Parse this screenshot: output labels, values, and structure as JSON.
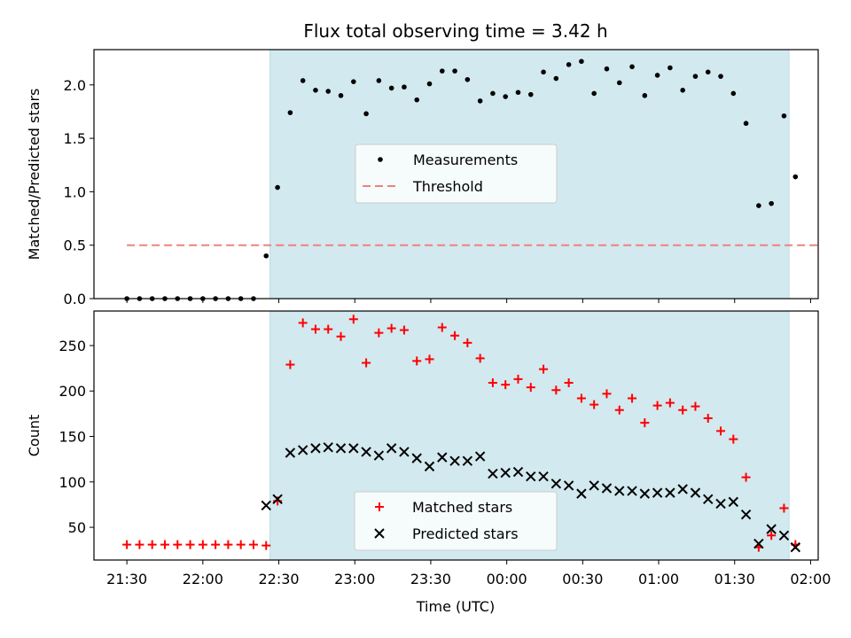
{
  "chart_data": {
    "title": "Flux total observing time = 3.42 h",
    "xlabel": "Time (UTC)",
    "x_ticks": [
      "21:30",
      "22:00",
      "22:30",
      "23:00",
      "23:30",
      "00:00",
      "00:30",
      "01:00",
      "01:30",
      "02:00"
    ],
    "x_tick_minutes": [
      0,
      30,
      60,
      90,
      120,
      150,
      180,
      210,
      240,
      270
    ],
    "xlim_minutes": [
      -13,
      273
    ],
    "observing_window_minutes": [
      56.5,
      261.5
    ],
    "shade_color": "#d2e9ef",
    "time": [
      0,
      5,
      10,
      15,
      20,
      25,
      30,
      35,
      40,
      45,
      50,
      55,
      59.5,
      64.5,
      69.5,
      74.5,
      79.5,
      84.5,
      89.5,
      94.5,
      99.5,
      104.5,
      109.5,
      114.5,
      119.5,
      124.5,
      129.5,
      134.5,
      139.5,
      144.5,
      149.5,
      154.5,
      159.5,
      164.5,
      169.5,
      174.5,
      179.5,
      184.5,
      189.5,
      194.5,
      199.5,
      204.5,
      209.5,
      214.5,
      219.5,
      224.5,
      229.5,
      234.5,
      239.5,
      244.5,
      249.5,
      254.5,
      259.5,
      264
    ],
    "panels": [
      {
        "type": "scatter",
        "ylabel": "Matched/Predicted stars",
        "ylim": [
          0,
          2.33
        ],
        "y_ticks": [
          0.0,
          0.5,
          1.0,
          1.5,
          2.0
        ],
        "y_tick_labels": [
          "0.0",
          "0.5",
          "1.0",
          "1.5",
          "2.0"
        ],
        "series": [
          {
            "name": "Measurements",
            "marker": "dot",
            "color": "#000000",
            "values": [
              0,
              0,
              0,
              0,
              0,
              0,
              0,
              0,
              0,
              0,
              0,
              0.4,
              1.04,
              1.74,
              2.04,
              1.95,
              1.94,
              1.9,
              2.03,
              1.73,
              2.04,
              1.97,
              1.98,
              1.86,
              2.01,
              2.13,
              2.13,
              2.05,
              1.85,
              1.92,
              1.89,
              1.93,
              1.91,
              2.12,
              2.06,
              2.19,
              2.22,
              1.92,
              2.15,
              2.02,
              2.17,
              1.9,
              2.09,
              2.16,
              1.95,
              2.08,
              2.12,
              2.08,
              1.92,
              1.64,
              0.87,
              0.89,
              1.71,
              1.14
            ]
          }
        ],
        "threshold": {
          "name": "Threshold",
          "value": 0.5,
          "x_range": [
            0,
            273
          ],
          "color": "#f08080"
        },
        "legend": {
          "position": "center"
        }
      },
      {
        "type": "scatter",
        "ylabel": "Count",
        "ylim": [
          14,
          288
        ],
        "y_ticks": [
          50,
          100,
          150,
          200,
          250
        ],
        "y_tick_labels": [
          "50",
          "100",
          "150",
          "200",
          "250"
        ],
        "series": [
          {
            "name": "Matched stars",
            "marker": "plus",
            "color": "#ff0000",
            "values": [
              31,
              31,
              31,
              31,
              31,
              31,
              31,
              31,
              31,
              31,
              31,
              30,
              79,
              229,
              275,
              268,
              268,
              260,
              279,
              231,
              264,
              269,
              267,
              233,
              235,
              270,
              261,
              253,
              236,
              209,
              207,
              213,
              204,
              224,
              201,
              209,
              192,
              185,
              197,
              179,
              192,
              165,
              184,
              187,
              179,
              183,
              170,
              156,
              147,
              105,
              28,
              41,
              71,
              31
            ]
          },
          {
            "name": "Predicted stars",
            "marker": "x",
            "color": "#000000",
            "values": [
              null,
              null,
              null,
              null,
              null,
              null,
              null,
              null,
              null,
              null,
              null,
              74,
              81,
              132,
              135,
              137,
              138,
              137,
              137,
              133,
              129,
              137,
              133,
              126,
              117,
              127,
              123,
              123,
              128,
              109,
              110,
              111,
              106,
              106,
              98,
              96,
              87,
              96,
              93,
              90,
              90,
              87,
              88,
              88,
              92,
              88,
              81,
              76,
              78,
              64,
              32,
              48,
              41,
              28
            ]
          }
        ],
        "legend": {
          "position": "lower center"
        }
      }
    ]
  }
}
